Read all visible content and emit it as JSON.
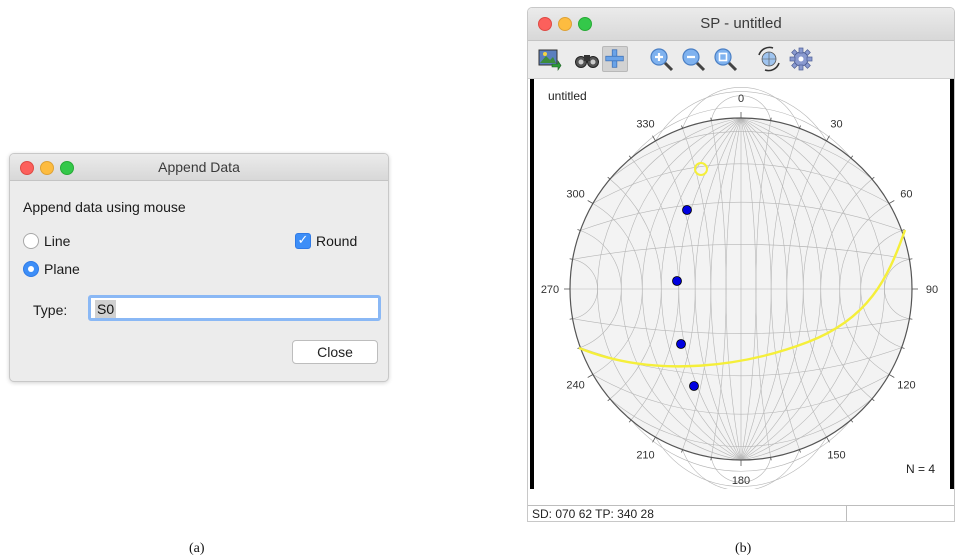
{
  "append_dialog": {
    "title": "Append Data",
    "heading": "Append data using mouse",
    "radio_line_label": "Line",
    "radio_plane_label": "Plane",
    "selected_radio": "Plane",
    "round_label": "Round",
    "round_checked": true,
    "type_label": "Type:",
    "type_value": "S0",
    "close_label": "Close"
  },
  "plot_window": {
    "title": "SP - untitled",
    "toolbar_icons": [
      "image-export-icon",
      "binoculars-icon",
      "crosshair-plus-icon",
      "zoom-in-icon",
      "zoom-out-icon",
      "zoom-fit-icon",
      "rotate-globe-icon",
      "gear-icon"
    ],
    "active_tool": "crosshair-plus-icon",
    "plot_title": "untitled",
    "azimuth_labels": [
      "0",
      "30",
      "60",
      "90",
      "120",
      "150",
      "180",
      "210",
      "240",
      "270",
      "300",
      "330"
    ],
    "n_label": "N = 4",
    "status_text": "SD: 070 62  TP: 340 28"
  },
  "captions": {
    "a": "(a)",
    "b": "(b)"
  },
  "colors": {
    "accent_blue": "#3d8ef7",
    "pole_point": "#0000e0",
    "great_circle": "#f5ef3a"
  }
}
